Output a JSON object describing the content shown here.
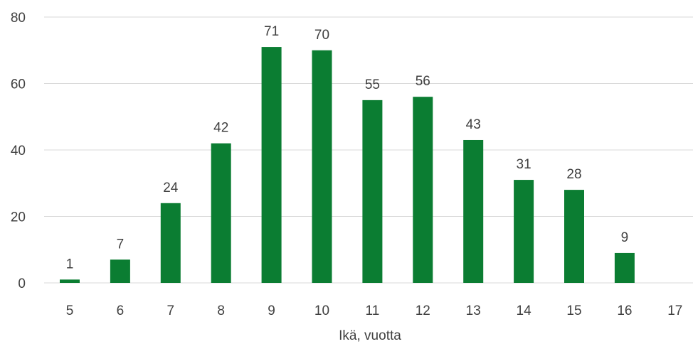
{
  "chart_data": {
    "type": "bar",
    "title": "",
    "xlabel": "Ikä, vuotta",
    "ylabel": "",
    "categories": [
      "5",
      "6",
      "7",
      "8",
      "9",
      "10",
      "11",
      "12",
      "13",
      "14",
      "15",
      "16",
      "17"
    ],
    "values": [
      1,
      7,
      24,
      42,
      71,
      70,
      55,
      56,
      43,
      31,
      28,
      9,
      null
    ],
    "data_labels": [
      "1",
      "7",
      "24",
      "42",
      "71",
      "70",
      "55",
      "56",
      "43",
      "31",
      "28",
      "9",
      ""
    ],
    "ylim": [
      0,
      80
    ],
    "yticks": [
      "0",
      "20",
      "40",
      "60",
      "80"
    ],
    "grid": true,
    "legend": "none",
    "bar_color": "#0b7d32"
  }
}
